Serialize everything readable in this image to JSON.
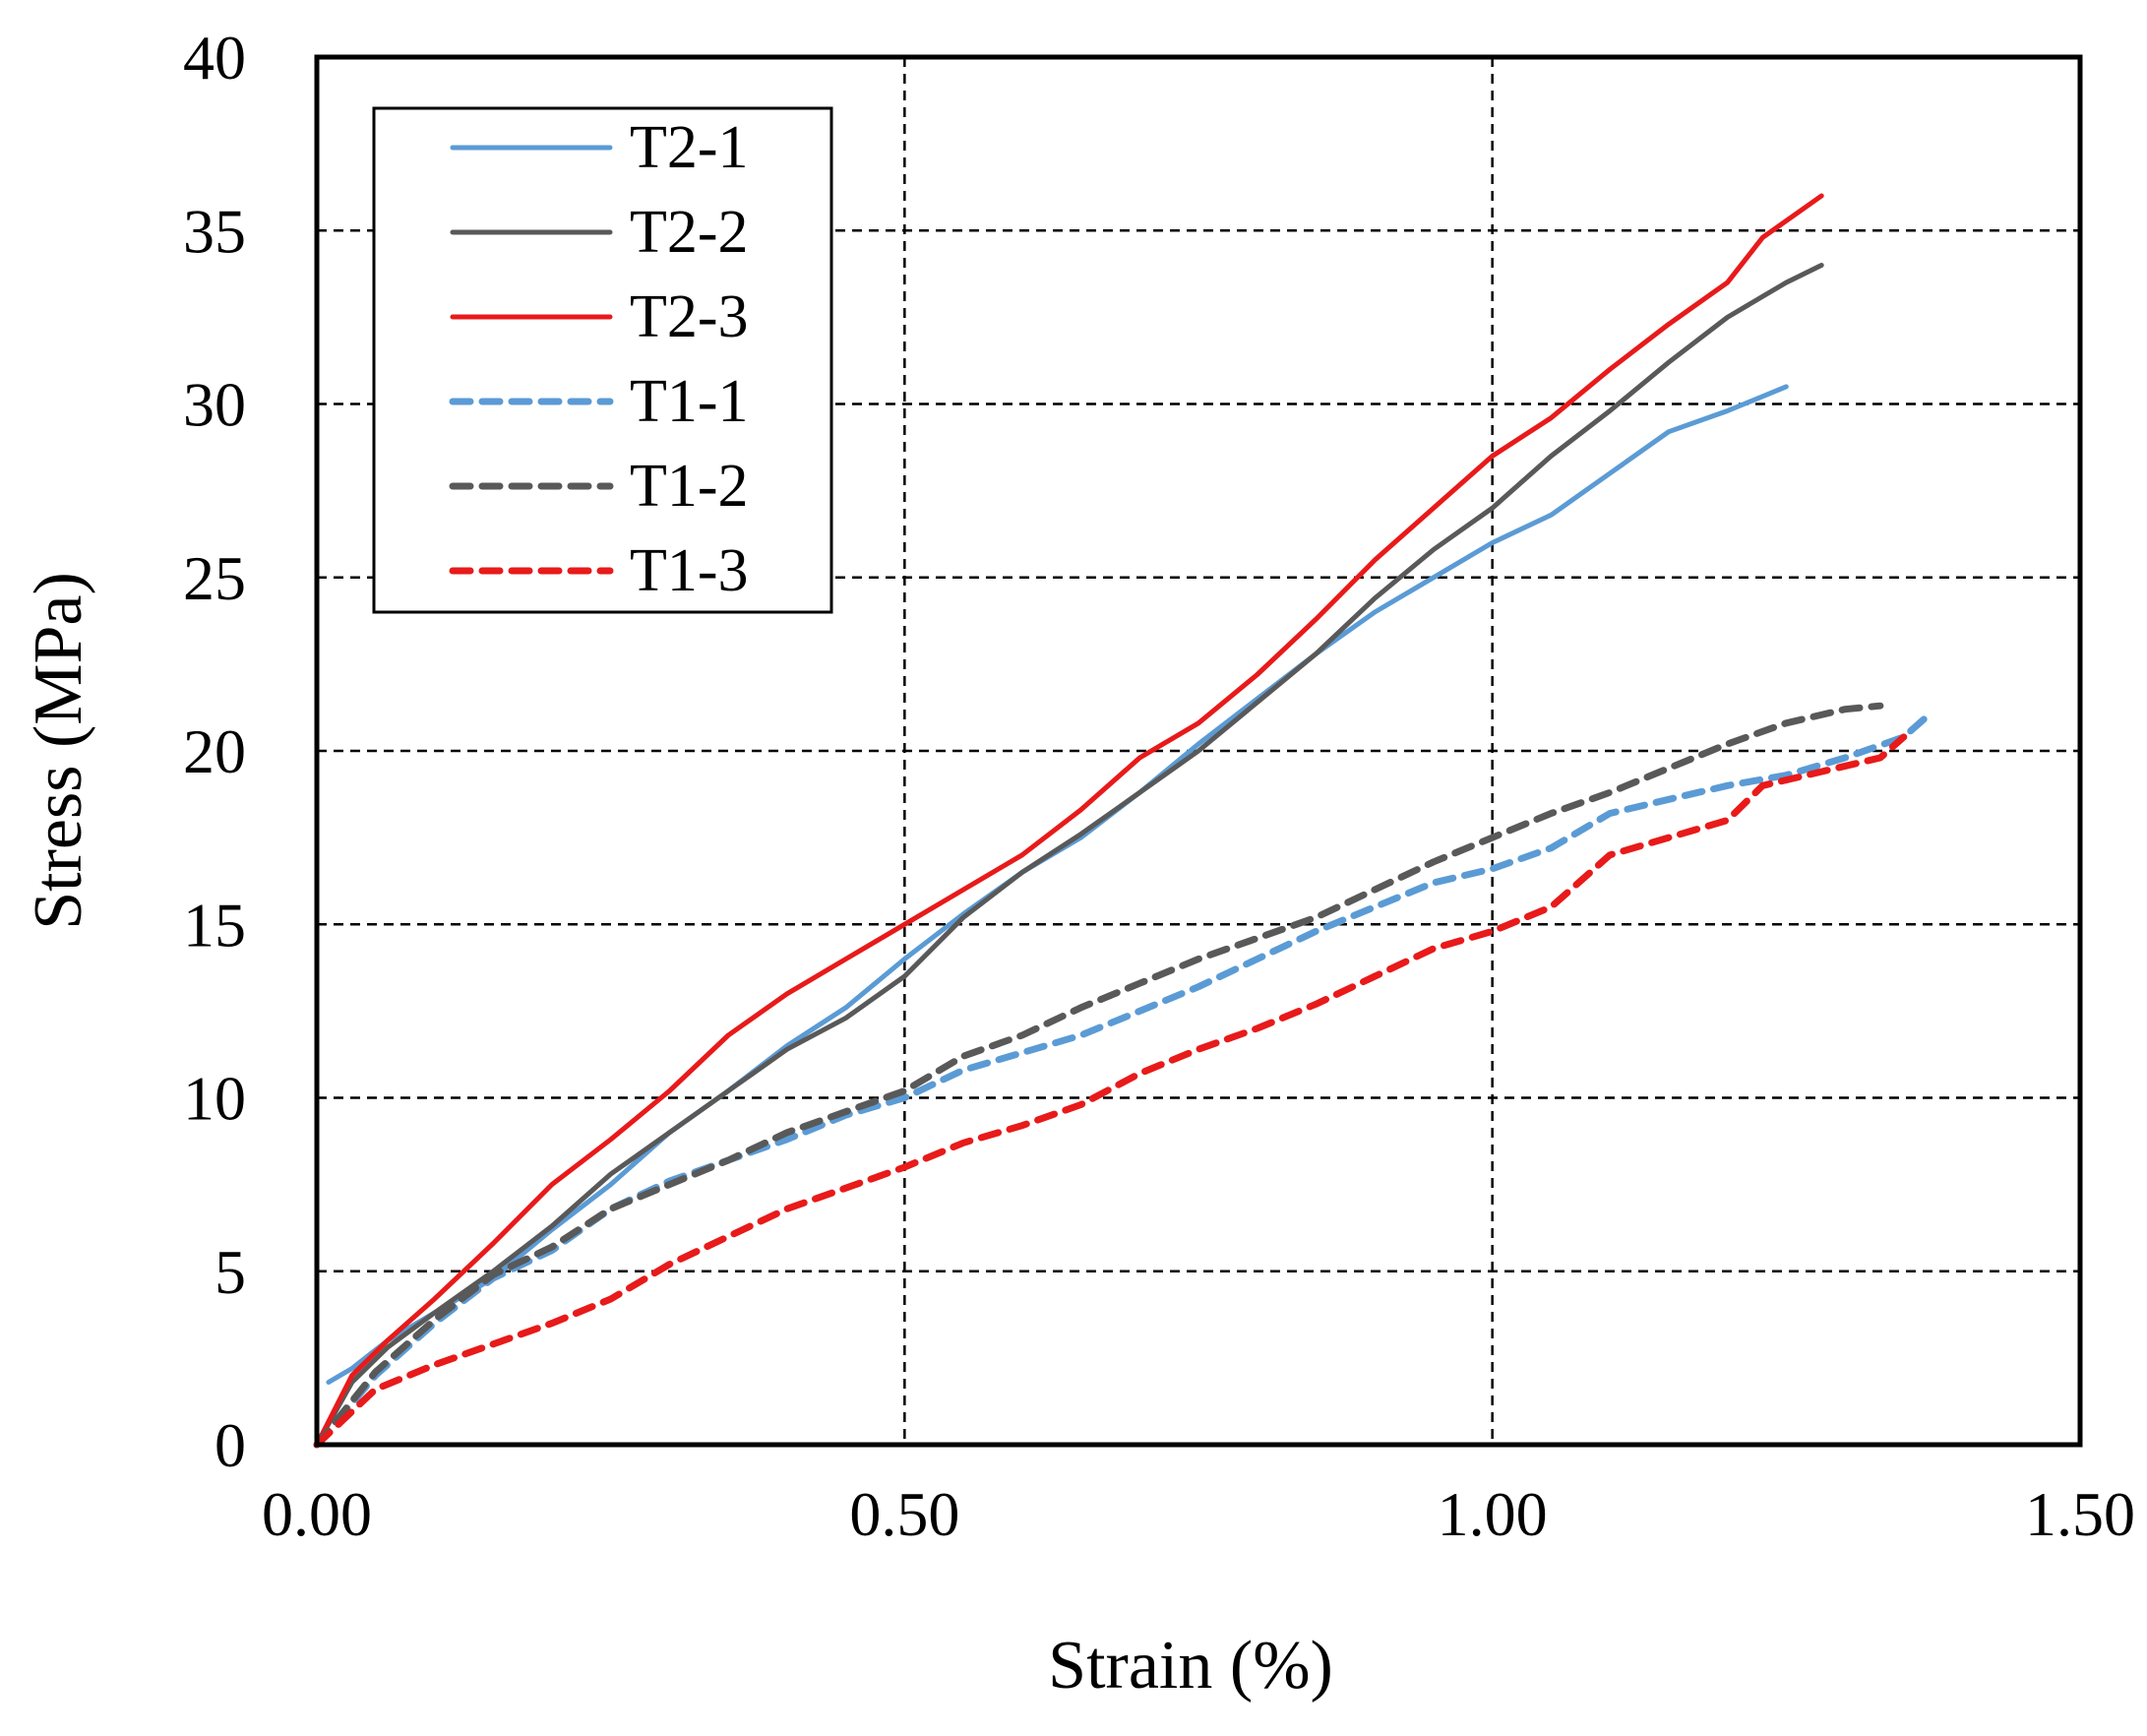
{
  "chart_data": {
    "type": "line",
    "title": "",
    "xlabel": "Strain (%)",
    "ylabel": "Stress (MPa)",
    "xlim": [
      0,
      1.5
    ],
    "ylim": [
      0,
      40
    ],
    "x_ticks": [
      "0.00",
      "0.50",
      "1.00",
      "1.50"
    ],
    "x_tick_values": [
      0,
      0.5,
      1.0,
      1.5
    ],
    "y_ticks": [
      "0",
      "5",
      "10",
      "15",
      "20",
      "25",
      "30",
      "35",
      "40"
    ],
    "y_tick_values": [
      0,
      5,
      10,
      15,
      20,
      25,
      30,
      35,
      40
    ],
    "grid": true,
    "legend_position": "top-left",
    "series": [
      {
        "name": "T2-1",
        "color": "#5B9BD5",
        "style": "solid",
        "points": [
          [
            0.01,
            1.8
          ],
          [
            0.03,
            2.2
          ],
          [
            0.06,
            3.0
          ],
          [
            0.1,
            3.8
          ],
          [
            0.15,
            4.8
          ],
          [
            0.2,
            6.2
          ],
          [
            0.25,
            7.5
          ],
          [
            0.3,
            9.0
          ],
          [
            0.35,
            10.2
          ],
          [
            0.4,
            11.5
          ],
          [
            0.45,
            12.6
          ],
          [
            0.5,
            14.0
          ],
          [
            0.55,
            15.3
          ],
          [
            0.6,
            16.5
          ],
          [
            0.65,
            17.5
          ],
          [
            0.7,
            18.8
          ],
          [
            0.75,
            20.2
          ],
          [
            0.8,
            21.5
          ],
          [
            0.85,
            22.8
          ],
          [
            0.9,
            24.0
          ],
          [
            0.95,
            25.0
          ],
          [
            1.0,
            26.0
          ],
          [
            1.05,
            26.8
          ],
          [
            1.1,
            28.0
          ],
          [
            1.15,
            29.2
          ],
          [
            1.2,
            29.8
          ],
          [
            1.25,
            30.5
          ]
        ]
      },
      {
        "name": "T2-2",
        "color": "#595959",
        "style": "solid",
        "points": [
          [
            0.0,
            0.0
          ],
          [
            0.03,
            1.8
          ],
          [
            0.06,
            2.8
          ],
          [
            0.1,
            3.8
          ],
          [
            0.15,
            5.0
          ],
          [
            0.2,
            6.3
          ],
          [
            0.25,
            7.8
          ],
          [
            0.3,
            9.0
          ],
          [
            0.35,
            10.2
          ],
          [
            0.4,
            11.4
          ],
          [
            0.45,
            12.3
          ],
          [
            0.5,
            13.5
          ],
          [
            0.55,
            15.2
          ],
          [
            0.6,
            16.5
          ],
          [
            0.65,
            17.6
          ],
          [
            0.7,
            18.8
          ],
          [
            0.75,
            20.0
          ],
          [
            0.8,
            21.4
          ],
          [
            0.85,
            22.8
          ],
          [
            0.9,
            24.4
          ],
          [
            0.95,
            25.8
          ],
          [
            1.0,
            27.0
          ],
          [
            1.05,
            28.5
          ],
          [
            1.1,
            29.8
          ],
          [
            1.15,
            31.2
          ],
          [
            1.2,
            32.5
          ],
          [
            1.25,
            33.5
          ],
          [
            1.28,
            34.0
          ]
        ]
      },
      {
        "name": "T2-3",
        "color": "#E81A1A",
        "style": "solid",
        "points": [
          [
            0.0,
            0.0
          ],
          [
            0.03,
            2.0
          ],
          [
            0.06,
            3.0
          ],
          [
            0.1,
            4.2
          ],
          [
            0.15,
            5.8
          ],
          [
            0.2,
            7.5
          ],
          [
            0.25,
            8.8
          ],
          [
            0.3,
            10.2
          ],
          [
            0.35,
            11.8
          ],
          [
            0.4,
            13.0
          ],
          [
            0.45,
            14.0
          ],
          [
            0.5,
            15.0
          ],
          [
            0.55,
            16.0
          ],
          [
            0.6,
            17.0
          ],
          [
            0.65,
            18.3
          ],
          [
            0.7,
            19.8
          ],
          [
            0.75,
            20.8
          ],
          [
            0.8,
            22.2
          ],
          [
            0.85,
            23.8
          ],
          [
            0.9,
            25.5
          ],
          [
            0.95,
            27.0
          ],
          [
            1.0,
            28.5
          ],
          [
            1.05,
            29.6
          ],
          [
            1.1,
            31.0
          ],
          [
            1.15,
            32.3
          ],
          [
            1.2,
            33.5
          ],
          [
            1.23,
            34.8
          ],
          [
            1.28,
            36.0
          ]
        ]
      },
      {
        "name": "T1-1",
        "color": "#5B9BD5",
        "style": "dashed",
        "points": [
          [
            0.0,
            0.0
          ],
          [
            0.05,
            2.0
          ],
          [
            0.1,
            3.5
          ],
          [
            0.15,
            4.8
          ],
          [
            0.2,
            5.6
          ],
          [
            0.25,
            6.8
          ],
          [
            0.3,
            7.6
          ],
          [
            0.35,
            8.2
          ],
          [
            0.4,
            8.8
          ],
          [
            0.45,
            9.5
          ],
          [
            0.5,
            10.0
          ],
          [
            0.55,
            10.8
          ],
          [
            0.6,
            11.3
          ],
          [
            0.65,
            11.8
          ],
          [
            0.7,
            12.5
          ],
          [
            0.75,
            13.2
          ],
          [
            0.8,
            14.0
          ],
          [
            0.85,
            14.8
          ],
          [
            0.9,
            15.5
          ],
          [
            0.95,
            16.2
          ],
          [
            1.0,
            16.6
          ],
          [
            1.05,
            17.2
          ],
          [
            1.1,
            18.2
          ],
          [
            1.15,
            18.6
          ],
          [
            1.2,
            19.0
          ],
          [
            1.25,
            19.3
          ],
          [
            1.3,
            19.8
          ],
          [
            1.35,
            20.4
          ],
          [
            1.37,
            21.0
          ]
        ]
      },
      {
        "name": "T1-2",
        "color": "#595959",
        "style": "dashed",
        "points": [
          [
            0.0,
            0.0
          ],
          [
            0.05,
            2.1
          ],
          [
            0.1,
            3.6
          ],
          [
            0.15,
            4.9
          ],
          [
            0.2,
            5.7
          ],
          [
            0.25,
            6.8
          ],
          [
            0.3,
            7.5
          ],
          [
            0.35,
            8.2
          ],
          [
            0.4,
            9.0
          ],
          [
            0.45,
            9.6
          ],
          [
            0.5,
            10.2
          ],
          [
            0.55,
            11.2
          ],
          [
            0.6,
            11.8
          ],
          [
            0.65,
            12.6
          ],
          [
            0.7,
            13.3
          ],
          [
            0.75,
            14.0
          ],
          [
            0.8,
            14.6
          ],
          [
            0.85,
            15.2
          ],
          [
            0.9,
            16.0
          ],
          [
            0.95,
            16.8
          ],
          [
            1.0,
            17.5
          ],
          [
            1.05,
            18.2
          ],
          [
            1.1,
            18.8
          ],
          [
            1.15,
            19.5
          ],
          [
            1.2,
            20.2
          ],
          [
            1.25,
            20.8
          ],
          [
            1.3,
            21.2
          ],
          [
            1.33,
            21.3
          ]
        ]
      },
      {
        "name": "T1-3",
        "color": "#E81A1A",
        "style": "dashed",
        "points": [
          [
            0.0,
            0.0
          ],
          [
            0.05,
            1.6
          ],
          [
            0.1,
            2.3
          ],
          [
            0.15,
            2.9
          ],
          [
            0.2,
            3.5
          ],
          [
            0.25,
            4.2
          ],
          [
            0.3,
            5.2
          ],
          [
            0.35,
            6.0
          ],
          [
            0.4,
            6.8
          ],
          [
            0.45,
            7.4
          ],
          [
            0.5,
            8.0
          ],
          [
            0.55,
            8.7
          ],
          [
            0.6,
            9.2
          ],
          [
            0.65,
            9.8
          ],
          [
            0.7,
            10.7
          ],
          [
            0.75,
            11.4
          ],
          [
            0.8,
            12.0
          ],
          [
            0.85,
            12.7
          ],
          [
            0.9,
            13.5
          ],
          [
            0.95,
            14.3
          ],
          [
            1.0,
            14.8
          ],
          [
            1.05,
            15.5
          ],
          [
            1.1,
            17.0
          ],
          [
            1.15,
            17.5
          ],
          [
            1.2,
            18.0
          ],
          [
            1.23,
            19.0
          ],
          [
            1.28,
            19.4
          ],
          [
            1.33,
            19.8
          ],
          [
            1.35,
            20.4
          ]
        ]
      }
    ]
  }
}
